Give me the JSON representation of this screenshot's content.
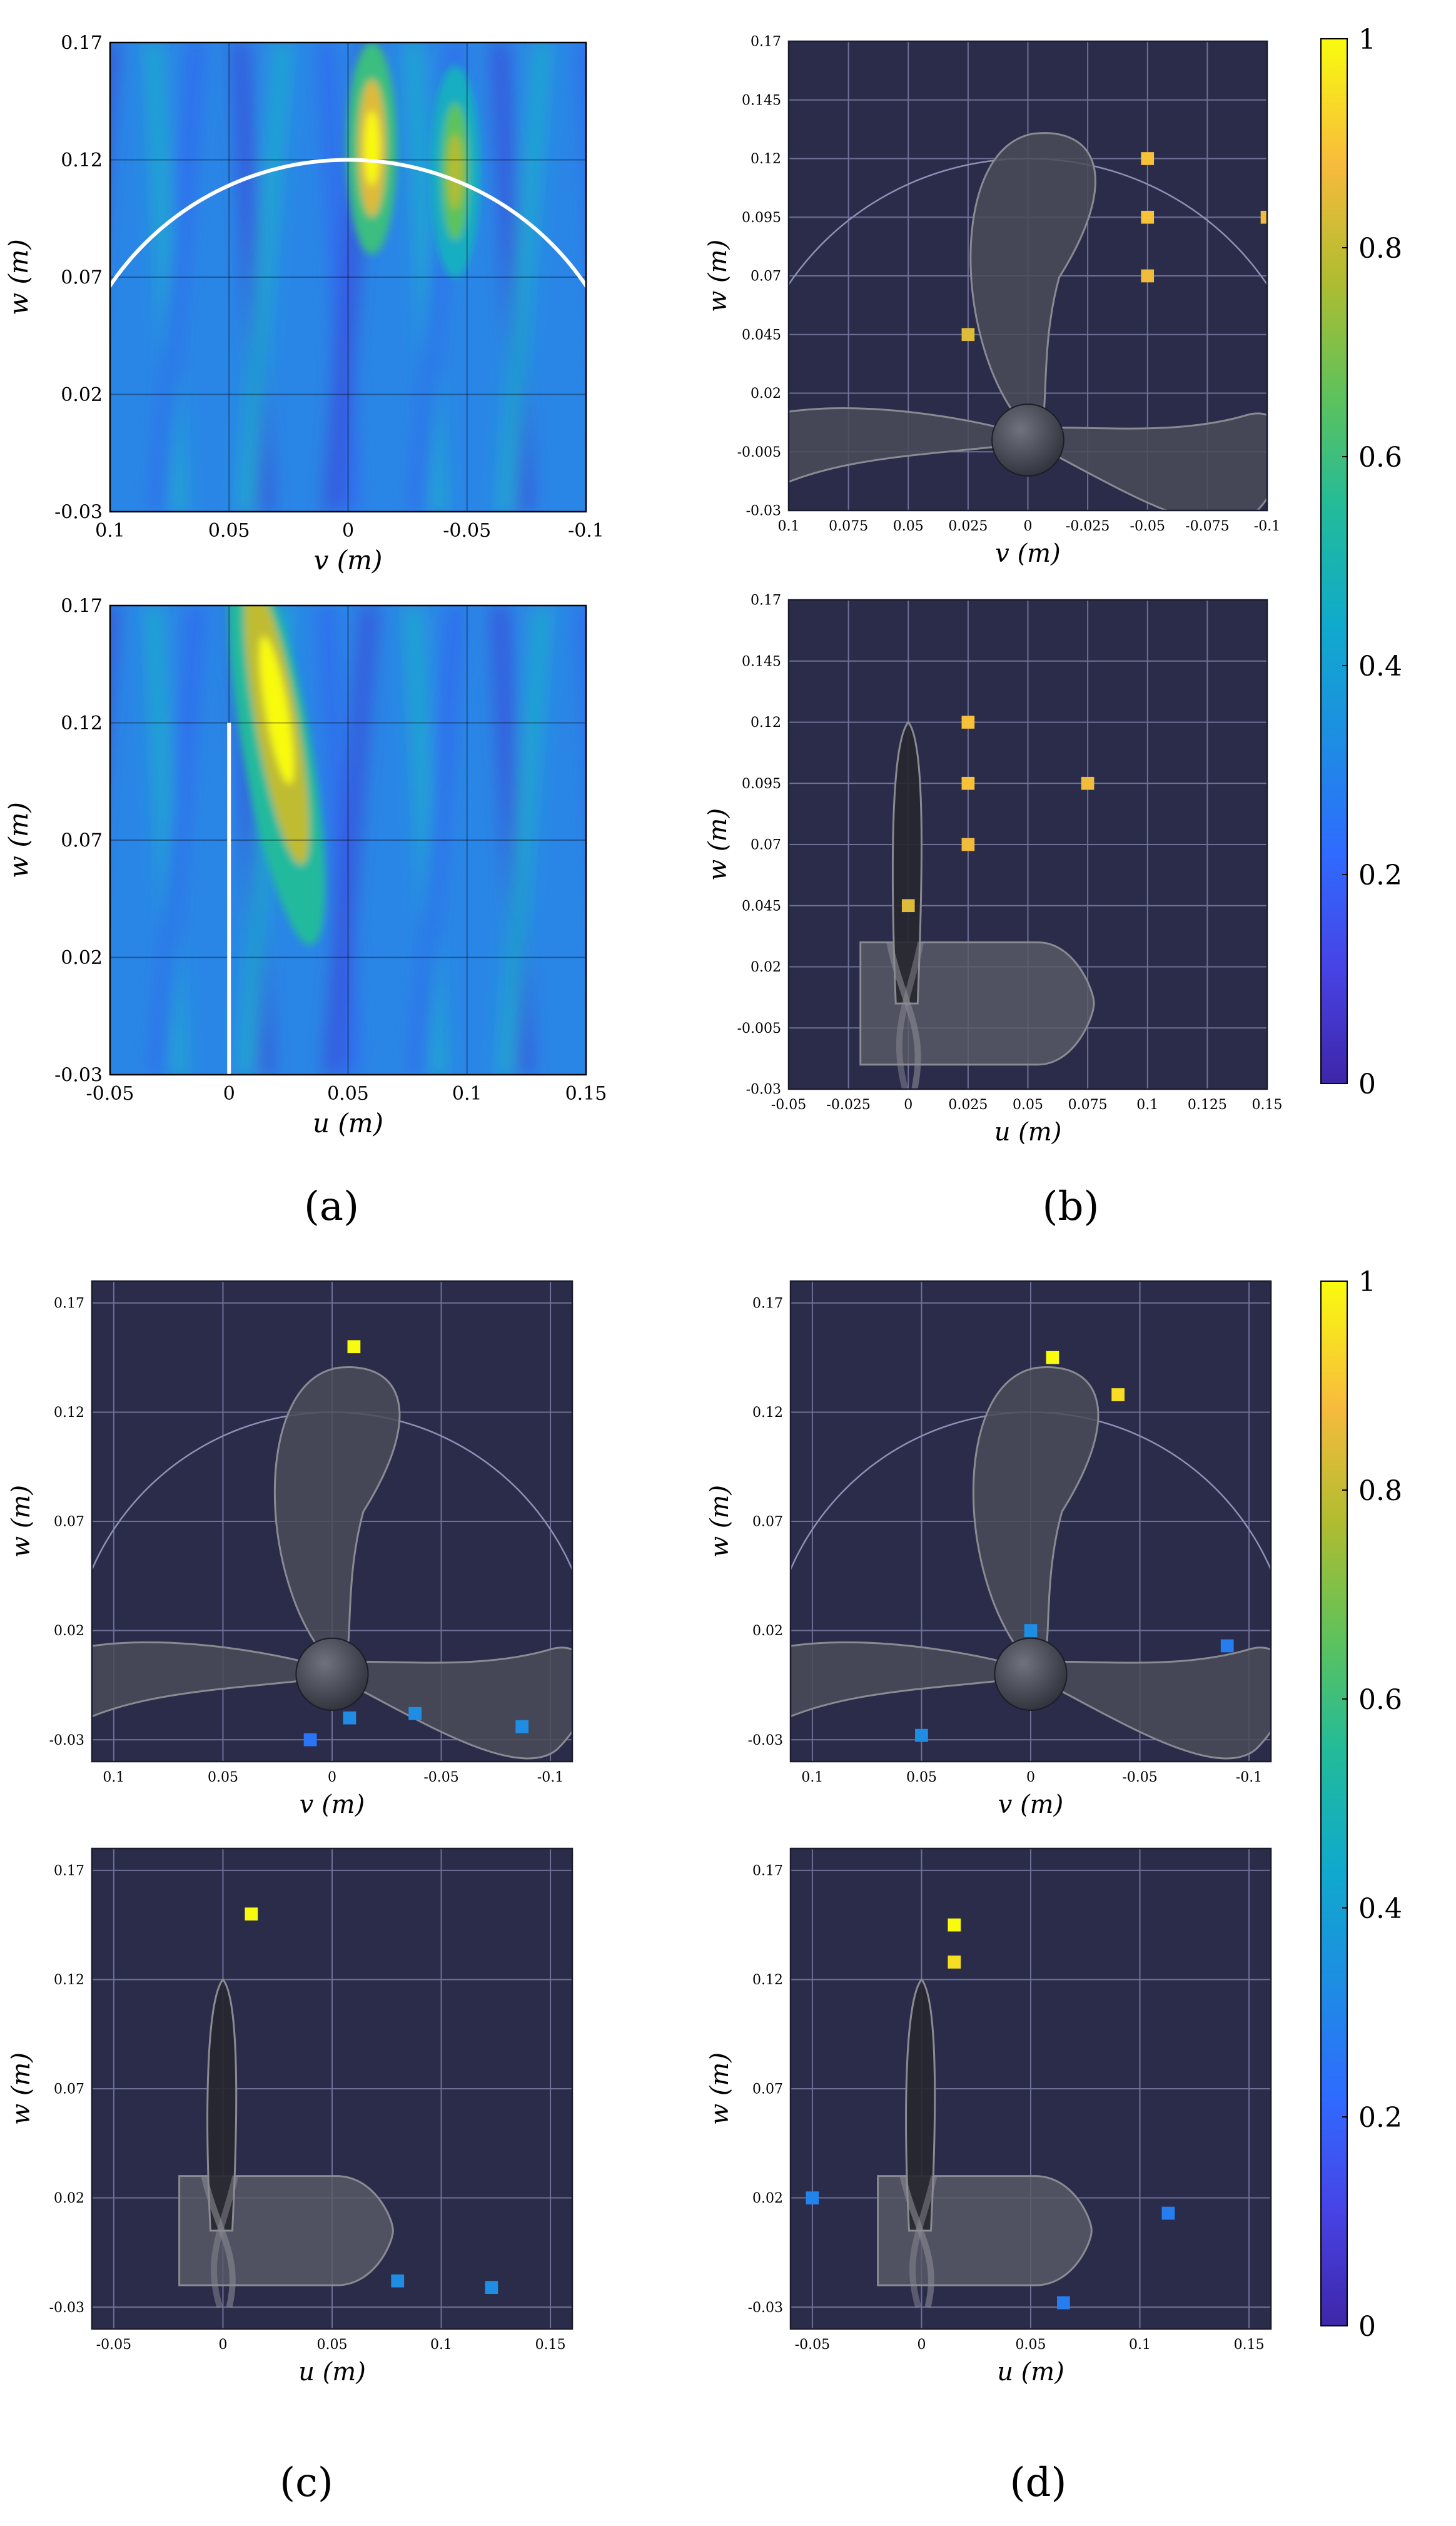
{
  "figure": {
    "panel_labels": [
      "(a)",
      "(b)",
      "(c)",
      "(d)"
    ]
  },
  "colors": {
    "parula": [
      "#3e26a8",
      "#4743e5",
      "#2f6bff",
      "#1d8ee2",
      "#10aacc",
      "#22bb9a",
      "#5fc25a",
      "#b1bc30",
      "#f7bb3d",
      "#f9fb0e"
    ],
    "dark_bg": "#2a2c4a",
    "grid": "#6e7196",
    "circle": "#8d90b5",
    "prop": "#4a4c58",
    "prop_light": "#8a8a92"
  },
  "colorbar": {
    "ticks": [
      "0",
      "0.2",
      "0.4",
      "0.6",
      "0.8",
      "1"
    ]
  },
  "chart_data": [
    {
      "id": "a-top",
      "type": "heatmap",
      "panel": "(a)",
      "xlabel": "v (m)",
      "ylabel": "w (m)",
      "xlim": [
        0.1,
        -0.1
      ],
      "ylim": [
        -0.03,
        0.17
      ],
      "xticks": [
        "0.1",
        "0.05",
        "0",
        "-0.05",
        "-0.1"
      ],
      "yticks": [
        "-0.03",
        "0.02",
        "0.07",
        "0.12",
        "0.17"
      ],
      "overlay": "circle arc of radius 0.12 m",
      "hot_spots": [
        {
          "v": -0.01,
          "w": 0.125,
          "intensity": 1.0
        },
        {
          "v": -0.045,
          "w": 0.115,
          "intensity": 0.78
        }
      ]
    },
    {
      "id": "a-bottom",
      "type": "heatmap",
      "panel": "(a)",
      "xlabel": "u (m)",
      "ylabel": "w (m)",
      "xlim": [
        -0.05,
        0.15
      ],
      "ylim": [
        -0.03,
        0.17
      ],
      "xticks": [
        "-0.05",
        "0",
        "0.05",
        "0.1",
        "0.15"
      ],
      "yticks": [
        "-0.03",
        "0.02",
        "0.07",
        "0.12",
        "0.17"
      ],
      "overlay": "blade line at u = 0, w from -0.03 to 0.12",
      "hot_spots": [
        {
          "u": 0.02,
          "w": 0.12,
          "intensity": 1.0
        }
      ]
    },
    {
      "id": "b-top",
      "type": "scatter",
      "panel": "(b)",
      "xlabel": "v (m)",
      "ylabel": "w (m)",
      "xlim": [
        0.1,
        -0.1
      ],
      "ylim": [
        -0.03,
        0.17
      ],
      "xticks": [
        "0.1",
        "0.075",
        "0.05",
        "0.025",
        "0",
        "-0.025",
        "-0.05",
        "-0.075",
        "-0.1"
      ],
      "yticks": [
        "-0.03",
        "-0.005",
        "0.02",
        "0.045",
        "0.07",
        "0.095",
        "0.12",
        "0.145",
        "0.17"
      ],
      "points": [
        {
          "x": -0.05,
          "y": 0.12,
          "value": 0.9
        },
        {
          "x": -0.05,
          "y": 0.095,
          "value": 0.9
        },
        {
          "x": -0.1,
          "y": 0.095,
          "value": 0.88
        },
        {
          "x": -0.05,
          "y": 0.07,
          "value": 0.88
        },
        {
          "x": 0.025,
          "y": 0.045,
          "value": 0.85
        }
      ]
    },
    {
      "id": "b-bottom",
      "type": "scatter",
      "panel": "(b)",
      "xlabel": "u (m)",
      "ylabel": "w (m)",
      "xlim": [
        -0.05,
        0.15
      ],
      "ylim": [
        -0.03,
        0.17
      ],
      "xticks": [
        "-0.05",
        "-0.025",
        "0",
        "0.025",
        "0.05",
        "0.075",
        "0.1",
        "0.125",
        "0.15"
      ],
      "yticks": [
        "-0.03",
        "-0.005",
        "0.02",
        "0.045",
        "0.07",
        "0.095",
        "0.12",
        "0.145",
        "0.17"
      ],
      "points": [
        {
          "x": 0.025,
          "y": 0.12,
          "value": 0.9
        },
        {
          "x": 0.025,
          "y": 0.095,
          "value": 0.9
        },
        {
          "x": 0.075,
          "y": 0.095,
          "value": 0.88
        },
        {
          "x": 0.025,
          "y": 0.07,
          "value": 0.88
        },
        {
          "x": 0.0,
          "y": 0.045,
          "value": 0.85
        }
      ]
    },
    {
      "id": "c-top",
      "type": "scatter",
      "panel": "(c)",
      "xlabel": "v (m)",
      "ylabel": "w (m)",
      "xlim": [
        0.11,
        -0.11
      ],
      "ylim": [
        -0.04,
        0.18
      ],
      "xticks": [
        "0.1",
        "0.05",
        "0",
        "-0.05",
        "-0.1"
      ],
      "yticks": [
        "-0.03",
        "0.02",
        "0.07",
        "0.12",
        "0.17"
      ],
      "points": [
        {
          "x": -0.01,
          "y": 0.15,
          "value": 1.0
        },
        {
          "x": 0.01,
          "y": -0.03,
          "value": 0.25
        },
        {
          "x": -0.008,
          "y": -0.02,
          "value": 0.33
        },
        {
          "x": -0.038,
          "y": -0.018,
          "value": 0.33
        },
        {
          "x": -0.087,
          "y": -0.024,
          "value": 0.33
        }
      ]
    },
    {
      "id": "c-bottom",
      "type": "scatter",
      "panel": "(c)",
      "xlabel": "u (m)",
      "ylabel": "w (m)",
      "xlim": [
        -0.06,
        0.16
      ],
      "ylim": [
        -0.04,
        0.18
      ],
      "xticks": [
        "-0.05",
        "0",
        "0.05",
        "0.1",
        "0.15"
      ],
      "yticks": [
        "-0.03",
        "0.02",
        "0.07",
        "0.12",
        "0.17"
      ],
      "points": [
        {
          "x": 0.013,
          "y": 0.15,
          "value": 1.0
        },
        {
          "x": 0.08,
          "y": -0.018,
          "value": 0.33
        },
        {
          "x": 0.123,
          "y": -0.021,
          "value": 0.33
        }
      ]
    },
    {
      "id": "d-top",
      "type": "scatter",
      "panel": "(d)",
      "xlabel": "v (m)",
      "ylabel": "w (m)",
      "xlim": [
        0.11,
        -0.11
      ],
      "ylim": [
        -0.04,
        0.18
      ],
      "xticks": [
        "0.1",
        "0.05",
        "0",
        "-0.05",
        "-0.1"
      ],
      "yticks": [
        "-0.03",
        "0.02",
        "0.07",
        "0.12",
        "0.17"
      ],
      "points": [
        {
          "x": -0.01,
          "y": 0.145,
          "value": 1.0
        },
        {
          "x": -0.04,
          "y": 0.128,
          "value": 0.95
        },
        {
          "x": 0.0,
          "y": 0.02,
          "value": 0.33
        },
        {
          "x": -0.09,
          "y": 0.013,
          "value": 0.28
        },
        {
          "x": 0.05,
          "y": -0.028,
          "value": 0.33
        }
      ]
    },
    {
      "id": "d-bottom",
      "type": "scatter",
      "panel": "(d)",
      "xlabel": "u (m)",
      "ylabel": "w (m)",
      "xlim": [
        -0.06,
        0.16
      ],
      "ylim": [
        -0.04,
        0.18
      ],
      "xticks": [
        "-0.05",
        "0",
        "0.05",
        "0.1",
        "0.15"
      ],
      "yticks": [
        "-0.03",
        "0.02",
        "0.07",
        "0.12",
        "0.17"
      ],
      "points": [
        {
          "x": 0.015,
          "y": 0.145,
          "value": 1.0
        },
        {
          "x": 0.015,
          "y": 0.128,
          "value": 0.95
        },
        {
          "x": -0.05,
          "y": 0.02,
          "value": 0.3
        },
        {
          "x": 0.113,
          "y": 0.013,
          "value": 0.28
        },
        {
          "x": 0.065,
          "y": -0.028,
          "value": 0.28
        }
      ]
    }
  ]
}
